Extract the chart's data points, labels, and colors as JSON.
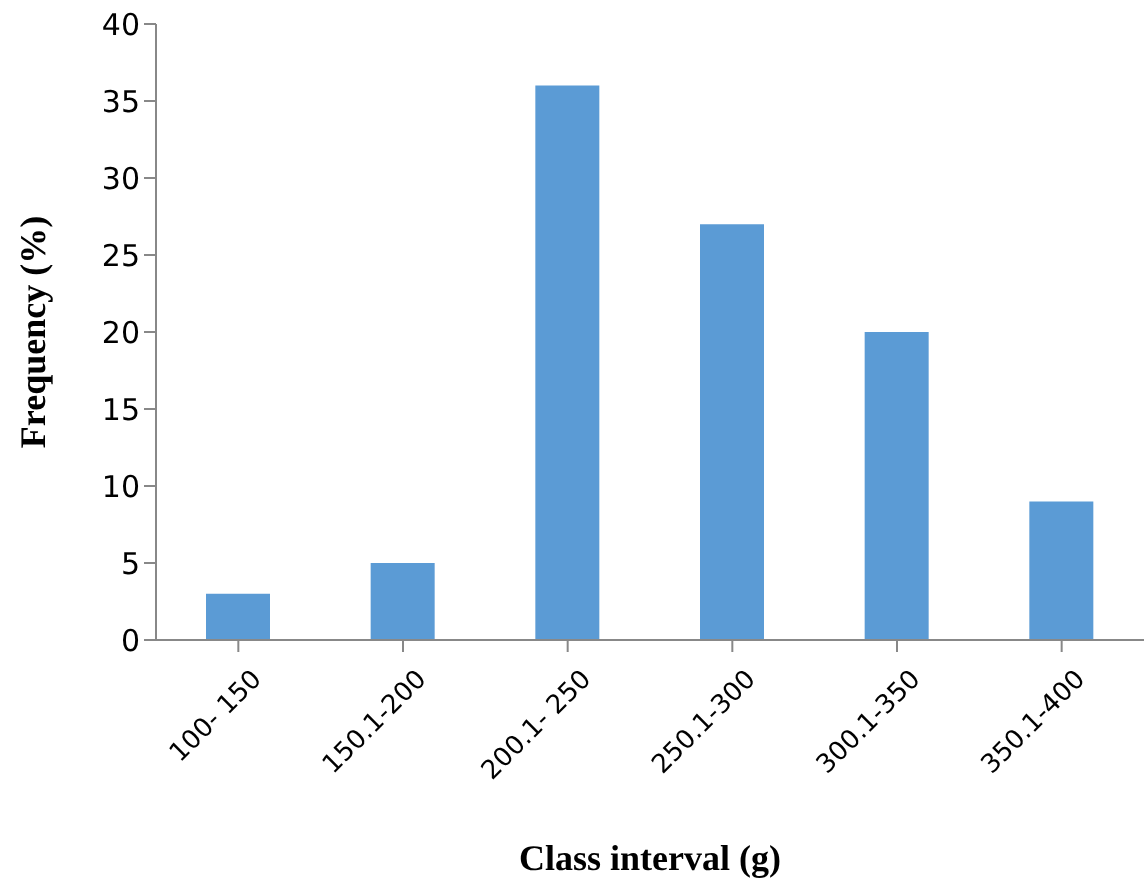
{
  "chart_data": {
    "type": "bar",
    "xlabel": "Class interval (g)",
    "ylabel": "Frequency (%)",
    "categories": [
      "100- 150",
      "150.1-200",
      "200.1- 250",
      "250.1-300",
      "300.1-350",
      "350.1-400"
    ],
    "values": [
      3,
      5,
      36,
      27,
      20,
      9
    ],
    "color": "#5b9bd5",
    "ylim": [
      0,
      40
    ],
    "yticks": [
      0,
      5,
      10,
      15,
      20,
      25,
      30,
      35,
      40
    ],
    "grid": false,
    "legend": false
  }
}
